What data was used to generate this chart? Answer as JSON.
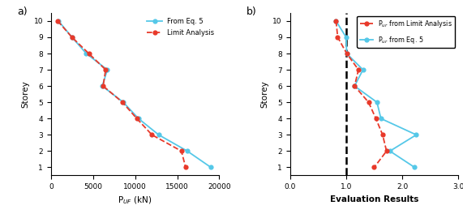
{
  "panel_a": {
    "storeys": [
      10,
      9,
      8,
      7,
      6,
      5,
      4,
      3,
      2,
      1
    ],
    "limit_analysis": [
      800,
      2500,
      4500,
      6500,
      6200,
      8500,
      10200,
      12000,
      15500,
      16000
    ],
    "from_eq5": [
      900,
      2500,
      4200,
      6700,
      6100,
      8600,
      10400,
      12800,
      16200,
      19000
    ],
    "xlabel": "P$_{UF}$ (kN)",
    "ylabel": "Storey",
    "label_limit": "Limit Analysis",
    "label_eq5": "From Eq. 5",
    "xlim": [
      0,
      20000
    ],
    "xticks": [
      0,
      5000,
      10000,
      15000,
      20000
    ],
    "xtick_labels": [
      "0",
      "5000",
      "10000",
      "15000",
      "20000"
    ],
    "ylim": [
      0.5,
      10.5
    ],
    "yticks": [
      1,
      2,
      3,
      4,
      5,
      6,
      7,
      8,
      9,
      10
    ]
  },
  "panel_b": {
    "storeys": [
      10,
      9,
      8,
      7,
      6,
      5,
      4,
      3,
      2,
      1
    ],
    "limit_analysis": [
      0.82,
      0.85,
      1.01,
      1.22,
      1.15,
      1.4,
      1.53,
      1.65,
      1.72,
      1.5
    ],
    "from_eq5": [
      0.82,
      1.0,
      1.01,
      1.3,
      1.15,
      1.55,
      1.62,
      2.25,
      1.78,
      2.22
    ],
    "xlabel": "Evaluation Results",
    "ylabel": "Storey",
    "label_limit": "P$_{ur}$ from Limit Analysis",
    "label_eq5": "P$_{ur}$ from Eq. 5",
    "dashed_x": 1.0,
    "xlim": [
      0.0,
      3.0
    ],
    "xticks": [
      0.0,
      1.0,
      2.0,
      3.0
    ],
    "xtick_labels": [
      "0.0",
      "1.0",
      "2.0",
      "3.0"
    ],
    "ylim": [
      0.5,
      10.5
    ],
    "yticks": [
      1,
      2,
      3,
      4,
      5,
      6,
      7,
      8,
      9,
      10
    ]
  },
  "color_red": "#e8392a",
  "color_blue": "#55c8e8",
  "panel_a_label": "a)",
  "panel_b_label": "b)"
}
